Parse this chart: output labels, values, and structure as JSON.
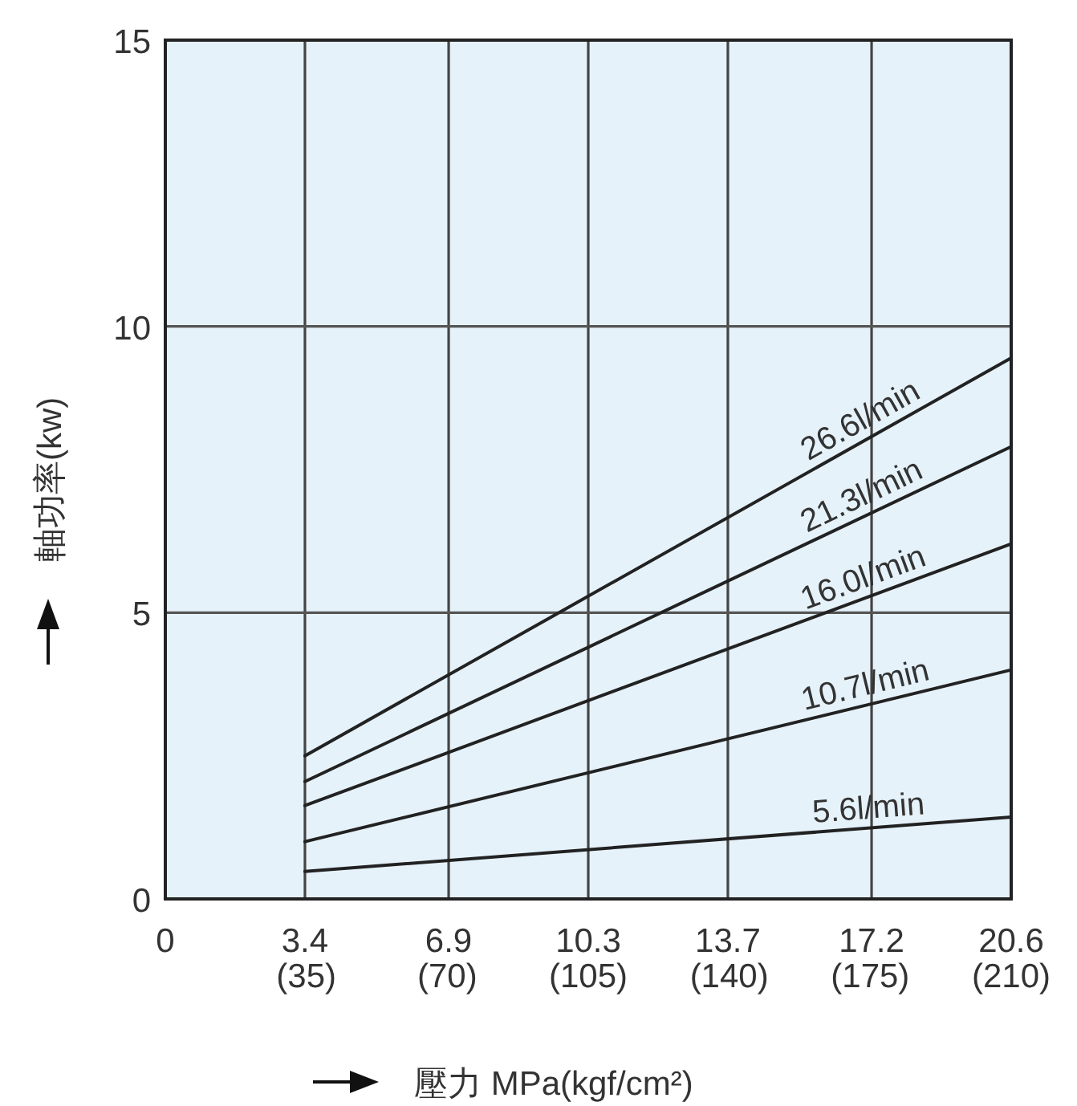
{
  "chart_data": {
    "type": "line",
    "xlabel": "壓力 MPa(kgf/cm²)",
    "ylabel": "軸功率(kw)",
    "xlim": [
      0,
      20.6
    ],
    "ylim": [
      0,
      15
    ],
    "xticks": [
      0,
      3.4,
      6.9,
      10.3,
      13.7,
      17.2,
      20.6
    ],
    "x2lim": [
      0,
      210
    ],
    "x2ticks": [
      {
        "value": 35,
        "label": "(35)"
      },
      {
        "value": 70,
        "label": "(70)"
      },
      {
        "value": 105,
        "label": "(105)"
      },
      {
        "value": 140,
        "label": "(140)"
      },
      {
        "value": 175,
        "label": "(175)"
      },
      {
        "value": 210,
        "label": "(210)"
      }
    ],
    "yticks": [
      0,
      5,
      10,
      15
    ],
    "grid": true,
    "marker": "none",
    "line_style": "solid",
    "x": [
      3.4,
      20.6
    ],
    "series": [
      {
        "name": "26.6l/min",
        "color": "#222222",
        "values": [
          2.5,
          9.45
        ]
      },
      {
        "name": "21.3l/min",
        "color": "#222222",
        "values": [
          2.05,
          7.9
        ]
      },
      {
        "name": "16.0l/min",
        "color": "#222222",
        "values": [
          1.63,
          6.2
        ]
      },
      {
        "name": "10.7l/min",
        "color": "#222222",
        "values": [
          1.0,
          4.0
        ]
      },
      {
        "name": "5.6l/min",
        "color": "#222222",
        "values": [
          0.48,
          1.43
        ]
      }
    ]
  }
}
